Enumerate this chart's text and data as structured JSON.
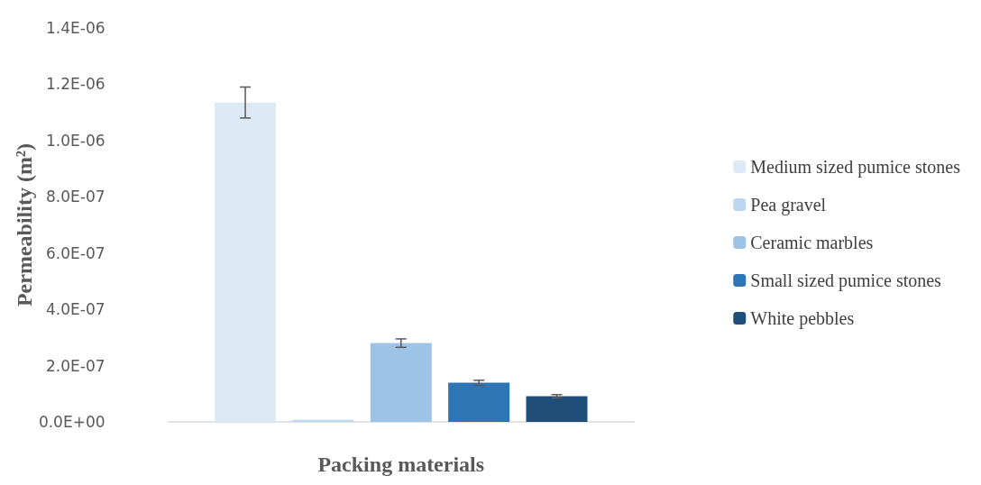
{
  "chart_data": {
    "type": "bar",
    "xlabel": "Packing materials",
    "ylabel": "Permeability (m²)",
    "categories": [
      null
    ],
    "series": [
      {
        "name": "Medium sized pumice stones",
        "color": "#ddeaf6",
        "values": [
          1.135e-06
        ],
        "errors": [
          5.5e-08
        ]
      },
      {
        "name": "Pea gravel",
        "color": "#bdd7ee",
        "values": [
          7e-09
        ],
        "errors": [
          null
        ]
      },
      {
        "name": "Ceramic marbles",
        "color": "#9dc3e6",
        "values": [
          2.8e-07
        ],
        "errors": [
          1.5e-08
        ]
      },
      {
        "name": "Small sized pumice stones",
        "color": "#2e75b6",
        "values": [
          1.39e-07
        ],
        "errors": [
          9e-09
        ]
      },
      {
        "name": "White pebbles",
        "color": "#1f4e79",
        "values": [
          9.1e-08
        ],
        "errors": [
          6e-09
        ]
      }
    ],
    "ylim": [
      0,
      1.4e-06
    ],
    "yticks": [
      {
        "value": 0,
        "label": "0.0E+00"
      },
      {
        "value": 2e-07,
        "label": "2.0E-07"
      },
      {
        "value": 4e-07,
        "label": "4.0E-07"
      },
      {
        "value": 6e-07,
        "label": "6.0E-07"
      },
      {
        "value": 8e-07,
        "label": "8.0E-07"
      },
      {
        "value": 1e-06,
        "label": "1.0E-06"
      },
      {
        "value": 1.2e-06,
        "label": "1.2E-06"
      },
      {
        "value": 1.4e-06,
        "label": "1.4E-06"
      }
    ],
    "grid": false,
    "legend": "right"
  }
}
